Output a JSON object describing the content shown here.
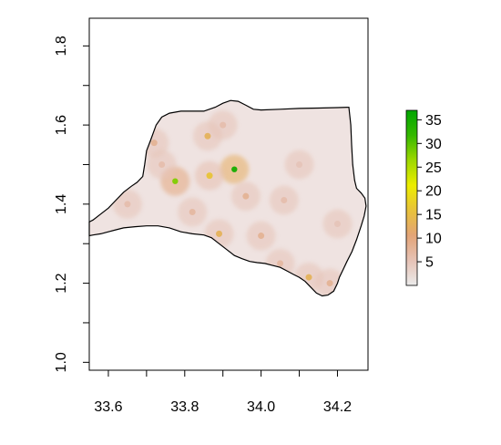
{
  "map": {
    "x_axis": {
      "range": [
        33.55,
        34.28
      ],
      "ticks": [
        33.6,
        33.7,
        33.8,
        33.9,
        34.0,
        34.1,
        34.2
      ],
      "labels": [
        "33.6",
        "33.8",
        "34.0",
        "34.2"
      ],
      "label_values": [
        33.6,
        33.8,
        34.0,
        34.2
      ]
    },
    "y_axis": {
      "range": [
        0.98,
        1.87
      ],
      "ticks": [
        1.0,
        1.1,
        1.2,
        1.3,
        1.4,
        1.5,
        1.6,
        1.7,
        1.8
      ],
      "labels": [
        "1.0",
        "1.2",
        "1.4",
        "1.6",
        "1.8"
      ],
      "label_values": [
        1.0,
        1.2,
        1.4,
        1.6,
        1.8
      ]
    },
    "boundary": [
      [
        33.55,
        1.355
      ],
      [
        33.56,
        1.36
      ],
      [
        33.58,
        1.375
      ],
      [
        33.6,
        1.39
      ],
      [
        33.62,
        1.41
      ],
      [
        33.64,
        1.43
      ],
      [
        33.66,
        1.445
      ],
      [
        33.675,
        1.455
      ],
      [
        33.69,
        1.47
      ],
      [
        33.695,
        1.5
      ],
      [
        33.7,
        1.535
      ],
      [
        33.71,
        1.56
      ],
      [
        33.725,
        1.6
      ],
      [
        33.74,
        1.62
      ],
      [
        33.76,
        1.63
      ],
      [
        33.79,
        1.635
      ],
      [
        33.82,
        1.635
      ],
      [
        33.85,
        1.635
      ],
      [
        33.88,
        1.645
      ],
      [
        33.9,
        1.655
      ],
      [
        33.92,
        1.662
      ],
      [
        33.94,
        1.66
      ],
      [
        33.96,
        1.65
      ],
      [
        33.98,
        1.64
      ],
      [
        34.0,
        1.638
      ],
      [
        34.05,
        1.64
      ],
      [
        34.1,
        1.642
      ],
      [
        34.15,
        1.643
      ],
      [
        34.2,
        1.644
      ],
      [
        34.23,
        1.645
      ],
      [
        34.235,
        1.6
      ],
      [
        34.237,
        1.55
      ],
      [
        34.24,
        1.5
      ],
      [
        34.245,
        1.46
      ],
      [
        34.25,
        1.44
      ],
      [
        34.262,
        1.428
      ],
      [
        34.272,
        1.415
      ],
      [
        34.275,
        1.395
      ],
      [
        34.27,
        1.37
      ],
      [
        34.262,
        1.345
      ],
      [
        34.25,
        1.31
      ],
      [
        34.238,
        1.28
      ],
      [
        34.225,
        1.255
      ],
      [
        34.215,
        1.235
      ],
      [
        34.205,
        1.215
      ],
      [
        34.2,
        1.2
      ],
      [
        34.19,
        1.18
      ],
      [
        34.175,
        1.17
      ],
      [
        34.16,
        1.168
      ],
      [
        34.145,
        1.175
      ],
      [
        34.13,
        1.19
      ],
      [
        34.115,
        1.205
      ],
      [
        34.1,
        1.215
      ],
      [
        34.085,
        1.222
      ],
      [
        34.07,
        1.23
      ],
      [
        34.05,
        1.24
      ],
      [
        34.03,
        1.245
      ],
      [
        34.01,
        1.25
      ],
      [
        33.99,
        1.252
      ],
      [
        33.97,
        1.255
      ],
      [
        33.95,
        1.262
      ],
      [
        33.93,
        1.27
      ],
      [
        33.91,
        1.285
      ],
      [
        33.89,
        1.3
      ],
      [
        33.87,
        1.315
      ],
      [
        33.85,
        1.322
      ],
      [
        33.82,
        1.325
      ],
      [
        33.79,
        1.33
      ],
      [
        33.76,
        1.34
      ],
      [
        33.73,
        1.345
      ],
      [
        33.7,
        1.345
      ],
      [
        33.67,
        1.343
      ],
      [
        33.64,
        1.34
      ],
      [
        33.62,
        1.335
      ],
      [
        33.6,
        1.33
      ],
      [
        33.58,
        1.325
      ],
      [
        33.56,
        1.322
      ],
      [
        33.55,
        1.32
      ]
    ],
    "hotspots": [
      {
        "lon": 33.93,
        "lat": 1.488,
        "value": 35
      },
      {
        "lon": 33.775,
        "lat": 1.458,
        "value": 28
      },
      {
        "lon": 33.865,
        "lat": 1.472,
        "value": 16
      },
      {
        "lon": 33.86,
        "lat": 1.572,
        "value": 13
      },
      {
        "lon": 33.89,
        "lat": 1.325,
        "value": 13
      },
      {
        "lon": 34.125,
        "lat": 1.215,
        "value": 13
      },
      {
        "lon": 33.72,
        "lat": 1.555,
        "value": 8
      },
      {
        "lon": 33.96,
        "lat": 1.42,
        "value": 8
      },
      {
        "lon": 34.0,
        "lat": 1.32,
        "value": 8
      },
      {
        "lon": 33.82,
        "lat": 1.38,
        "value": 7
      },
      {
        "lon": 34.05,
        "lat": 1.25,
        "value": 7
      },
      {
        "lon": 34.18,
        "lat": 1.2,
        "value": 8
      },
      {
        "lon": 33.65,
        "lat": 1.4,
        "value": 6
      },
      {
        "lon": 33.9,
        "lat": 1.6,
        "value": 6
      },
      {
        "lon": 34.1,
        "lat": 1.5,
        "value": 5
      },
      {
        "lon": 34.2,
        "lat": 1.35,
        "value": 5
      },
      {
        "lon": 34.06,
        "lat": 1.41,
        "value": 6
      },
      {
        "lon": 33.74,
        "lat": 1.5,
        "value": 6
      }
    ]
  },
  "legend": {
    "range": [
      0,
      37
    ],
    "ticks": [
      5,
      10,
      15,
      20,
      25,
      30,
      35
    ],
    "labels": [
      "5",
      "10",
      "15",
      "20",
      "25",
      "30",
      "35"
    ],
    "colors": [
      "#ebebeb",
      "#e6c2b5",
      "#e3a477",
      "#e8c23a",
      "#eced00",
      "#9ed800",
      "#35b800",
      "#00a600"
    ]
  }
}
